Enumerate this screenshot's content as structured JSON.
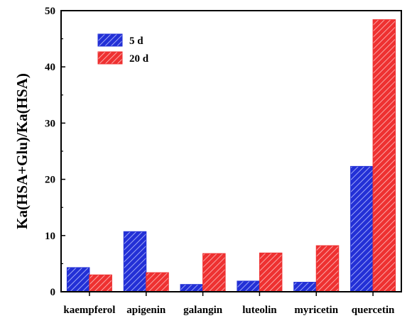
{
  "chart_data": {
    "type": "bar",
    "title": "",
    "xlabel": "",
    "ylabel": "Ka(HSA+Glu)/Ka(HSA)",
    "ylim": [
      0,
      50
    ],
    "yticks": [
      "0",
      "10",
      "20",
      "30",
      "40",
      "50"
    ],
    "categories": [
      "kaempferol",
      "apigenin",
      "galangin",
      "luteolin",
      "myricetin",
      "quercetin"
    ],
    "series": [
      {
        "name": "5 d",
        "color": "#2330d6",
        "values": [
          4.3,
          10.7,
          1.3,
          1.9,
          1.7,
          22.3
        ]
      },
      {
        "name": "20 d",
        "color": "#ee3131",
        "values": [
          3.0,
          3.4,
          6.8,
          6.9,
          8.2,
          48.4
        ]
      }
    ],
    "grid": false,
    "legend_position": "top-left"
  }
}
